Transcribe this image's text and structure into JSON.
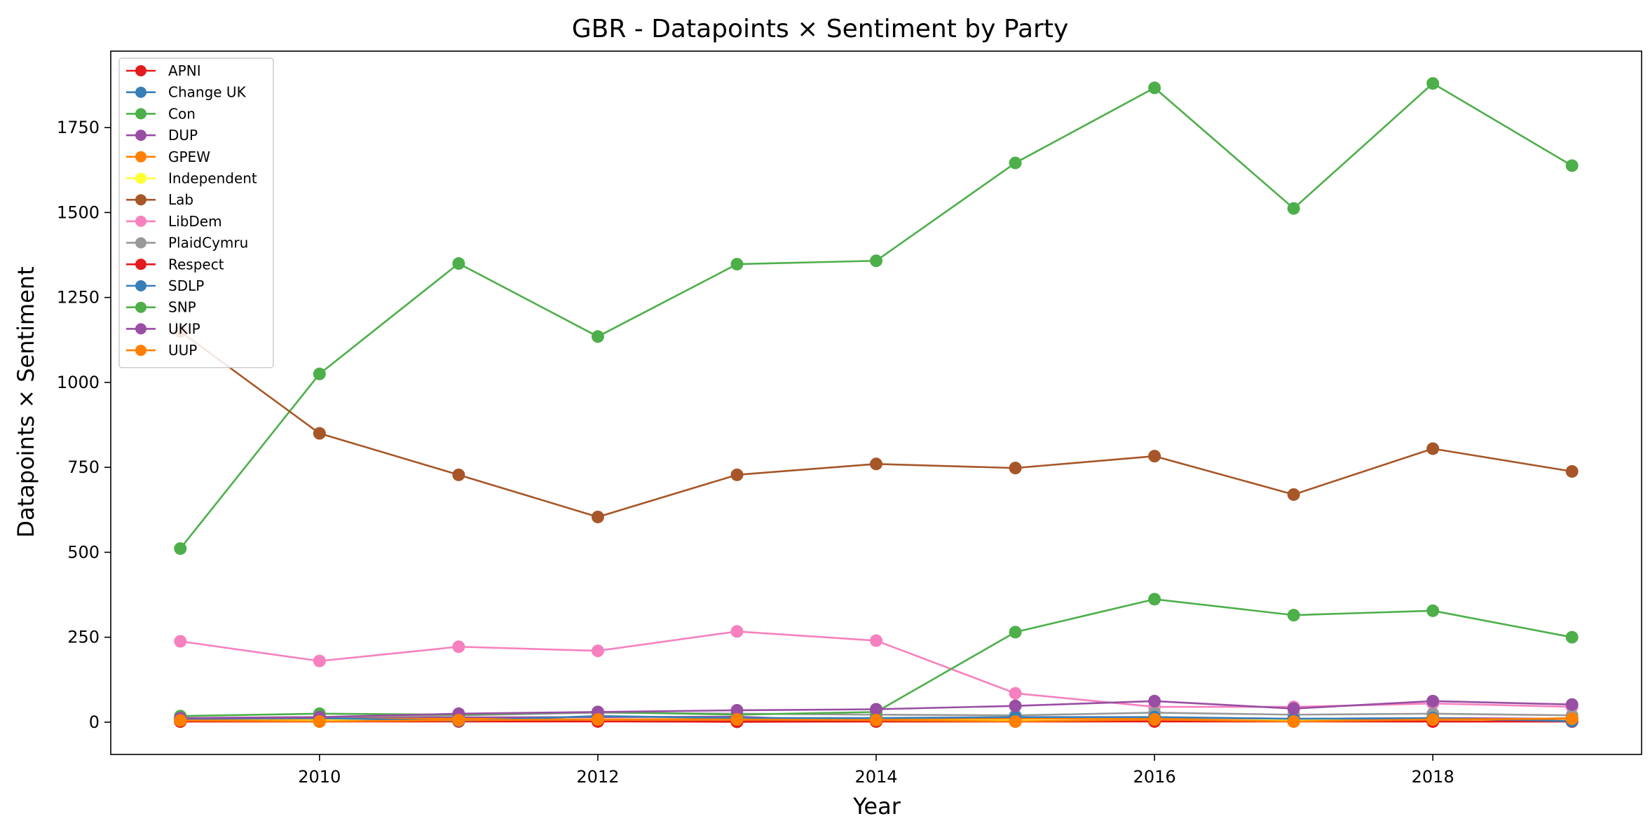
{
  "chart_data": {
    "type": "line",
    "title": "GBR - Datapoints × Sentiment by Party",
    "xlabel": "Year",
    "ylabel": "Datapoints × Sentiment",
    "x": [
      2009,
      2010,
      2011,
      2012,
      2013,
      2014,
      2015,
      2016,
      2017,
      2018,
      2019
    ],
    "xlim": [
      2008.5,
      2019.5
    ],
    "ylim": [
      -95,
      1975
    ],
    "xticks": [
      2010,
      2012,
      2014,
      2016,
      2018
    ],
    "yticks": [
      0,
      250,
      500,
      750,
      1000,
      1250,
      1500,
      1750
    ],
    "grid": false,
    "legend_position": "upper-left",
    "series": [
      {
        "name": "APNI",
        "color": "#e41a1c",
        "values": [
          2,
          2,
          3,
          3,
          1,
          2,
          2,
          3,
          3,
          2,
          2
        ]
      },
      {
        "name": "Change UK",
        "color": "#377eb8",
        "values": [
          null,
          null,
          null,
          null,
          null,
          null,
          null,
          null,
          null,
          null,
          3
        ]
      },
      {
        "name": "Con",
        "color": "#4daf4a",
        "values": [
          511,
          1025,
          1350,
          1135,
          1348,
          1358,
          1646,
          1867,
          1512,
          1880,
          1638
        ]
      },
      {
        "name": "DUP",
        "color": "#984ea3",
        "values": [
          8,
          12,
          14,
          15,
          16,
          2,
          12,
          14,
          10,
          12,
          10
        ]
      },
      {
        "name": "GPEW",
        "color": "#ff7f00",
        "values": [
          6,
          10,
          10,
          8,
          10,
          8,
          10,
          12,
          10,
          5,
          12
        ]
      },
      {
        "name": "Independent",
        "color": "#ffff33",
        "values": [
          3,
          5,
          5,
          4,
          5,
          5,
          5,
          5,
          5,
          5,
          5
        ]
      },
      {
        "name": "Lab",
        "color": "#a65628",
        "values": [
          1150,
          850,
          728,
          604,
          728,
          760,
          748,
          783,
          670,
          805,
          738
        ]
      },
      {
        "name": "LibDem",
        "color": "#f781bf",
        "values": [
          238,
          180,
          222,
          210,
          267,
          240,
          85,
          45,
          45,
          55,
          45
        ]
      },
      {
        "name": "PlaidCymru",
        "color": "#999999",
        "values": [
          12,
          15,
          20,
          28,
          25,
          22,
          20,
          28,
          22,
          25,
          20
        ]
      },
      {
        "name": "Respect",
        "color": "#e41a1c",
        "values": [
          2,
          2,
          2,
          2,
          2,
          2,
          2,
          2,
          2,
          2,
          2
        ]
      },
      {
        "name": "SDLP",
        "color": "#377eb8",
        "values": [
          10,
          12,
          4,
          18,
          12,
          12,
          15,
          15,
          10,
          12,
          3
        ]
      },
      {
        "name": "SNP",
        "color": "#4daf4a",
        "values": [
          18,
          25,
          22,
          30,
          22,
          30,
          265,
          362,
          315,
          328,
          250
        ]
      },
      {
        "name": "UKIP",
        "color": "#984ea3",
        "values": [
          12,
          15,
          25,
          30,
          35,
          38,
          48,
          62,
          40,
          62,
          52
        ]
      },
      {
        "name": "UUP",
        "color": "#ff7f00",
        "values": [
          5,
          2,
          6,
          8,
          8,
          6,
          2,
          8,
          2,
          8,
          10
        ]
      }
    ]
  }
}
